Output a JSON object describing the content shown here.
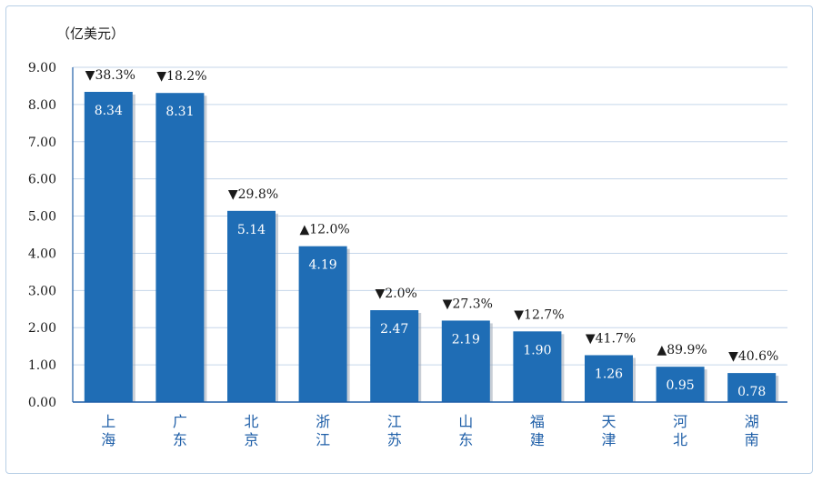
{
  "chart_data": {
    "type": "bar",
    "unit_label": "（亿美元）",
    "categories": [
      "上海",
      "广东",
      "北京",
      "浙江",
      "江苏",
      "山东",
      "福建",
      "天津",
      "河北",
      "湖南"
    ],
    "values": [
      8.34,
      8.31,
      5.14,
      4.19,
      2.47,
      2.19,
      1.9,
      1.26,
      0.95,
      0.78
    ],
    "value_labels": [
      "8.34",
      "8.31",
      "5.14",
      "4.19",
      "2.47",
      "2.19",
      "1.90",
      "1.26",
      "0.95",
      "0.78"
    ],
    "change_labels": [
      "▼38.3%",
      "▼18.2%",
      "▼29.8%",
      "▲12.0%",
      "▼2.0%",
      "▼27.3%",
      "▼12.7%",
      "▼41.7%",
      "▲89.9%",
      "▼40.6%"
    ],
    "yticks": [
      "0.00",
      "1.00",
      "2.00",
      "3.00",
      "4.00",
      "5.00",
      "6.00",
      "7.00",
      "8.00",
      "9.00"
    ],
    "ylim": [
      0,
      9
    ],
    "grid": true,
    "bar_color": "#1f6db5",
    "grid_color": "#c5d6ea",
    "axis_color": "#1f5fa8"
  }
}
